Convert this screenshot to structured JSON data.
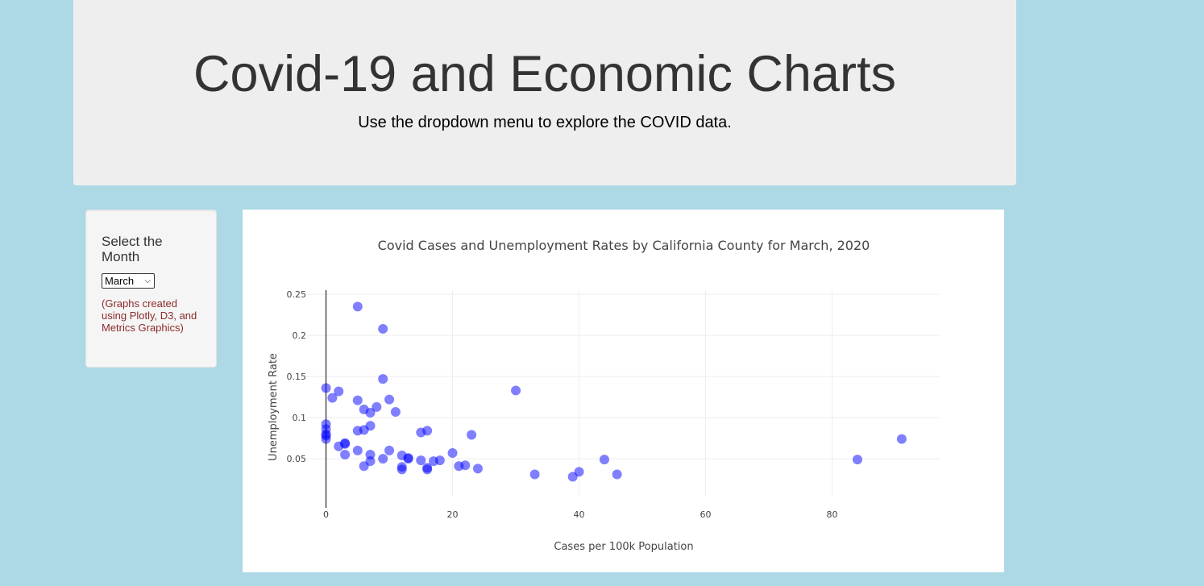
{
  "header": {
    "title": "Covid-19 and Economic Charts",
    "subtitle": "Use the dropdown menu to explore the COVID data."
  },
  "sidebar": {
    "heading": "Select the Month",
    "select": {
      "selected": "March",
      "caret_icon": "chevron-down-icon"
    },
    "note": "(Graphs created using Plotly, D3, and Metrics Graphics)"
  },
  "colors": {
    "page_background": "#add8e6",
    "header_background": "#eeeeee",
    "note_text": "#8b2b2b",
    "marker": "#0000ff"
  },
  "chart_data": {
    "type": "scatter",
    "title": "Covid Cases and Unemployment Rates by California County for March, 2020",
    "xlabel": "Cases per 100k Population",
    "ylabel": "Unemployment Rate",
    "xlim": [
      -3,
      97
    ],
    "ylim": [
      0.005,
      0.255
    ],
    "x_ticks": [
      0,
      20,
      40,
      60,
      80
    ],
    "y_ticks": [
      0.05,
      0.1,
      0.15,
      0.2,
      0.25
    ],
    "grid": true,
    "legend": "none",
    "points": [
      {
        "x": 5,
        "y": 0.235
      },
      {
        "x": 9,
        "y": 0.208
      },
      {
        "x": 9,
        "y": 0.147
      },
      {
        "x": 0,
        "y": 0.136
      },
      {
        "x": 2,
        "y": 0.132
      },
      {
        "x": 1,
        "y": 0.124
      },
      {
        "x": 5,
        "y": 0.121
      },
      {
        "x": 10,
        "y": 0.122
      },
      {
        "x": 8,
        "y": 0.113
      },
      {
        "x": 6,
        "y": 0.11
      },
      {
        "x": 7,
        "y": 0.106
      },
      {
        "x": 11,
        "y": 0.107
      },
      {
        "x": 30,
        "y": 0.133
      },
      {
        "x": 0,
        "y": 0.092
      },
      {
        "x": 0,
        "y": 0.086
      },
      {
        "x": 0,
        "y": 0.08
      },
      {
        "x": 0,
        "y": 0.078
      },
      {
        "x": 0,
        "y": 0.074
      },
      {
        "x": 7,
        "y": 0.09
      },
      {
        "x": 5,
        "y": 0.084
      },
      {
        "x": 6,
        "y": 0.085
      },
      {
        "x": 15,
        "y": 0.082
      },
      {
        "x": 16,
        "y": 0.084
      },
      {
        "x": 23,
        "y": 0.079
      },
      {
        "x": 2,
        "y": 0.065
      },
      {
        "x": 3,
        "y": 0.069
      },
      {
        "x": 3,
        "y": 0.068
      },
      {
        "x": 3,
        "y": 0.055
      },
      {
        "x": 5,
        "y": 0.06
      },
      {
        "x": 7,
        "y": 0.055
      },
      {
        "x": 7,
        "y": 0.047
      },
      {
        "x": 6,
        "y": 0.041
      },
      {
        "x": 9,
        "y": 0.05
      },
      {
        "x": 10,
        "y": 0.06
      },
      {
        "x": 12,
        "y": 0.054
      },
      {
        "x": 13,
        "y": 0.051
      },
      {
        "x": 13,
        "y": 0.05
      },
      {
        "x": 12,
        "y": 0.04
      },
      {
        "x": 12,
        "y": 0.037
      },
      {
        "x": 15,
        "y": 0.048
      },
      {
        "x": 16,
        "y": 0.039
      },
      {
        "x": 16,
        "y": 0.037
      },
      {
        "x": 17,
        "y": 0.047
      },
      {
        "x": 18,
        "y": 0.048
      },
      {
        "x": 20,
        "y": 0.057
      },
      {
        "x": 21,
        "y": 0.041
      },
      {
        "x": 22,
        "y": 0.042
      },
      {
        "x": 24,
        "y": 0.038
      },
      {
        "x": 33,
        "y": 0.031
      },
      {
        "x": 39,
        "y": 0.028
      },
      {
        "x": 40,
        "y": 0.034
      },
      {
        "x": 44,
        "y": 0.049
      },
      {
        "x": 46,
        "y": 0.031
      },
      {
        "x": 84,
        "y": 0.049
      },
      {
        "x": 91,
        "y": 0.074
      }
    ]
  }
}
